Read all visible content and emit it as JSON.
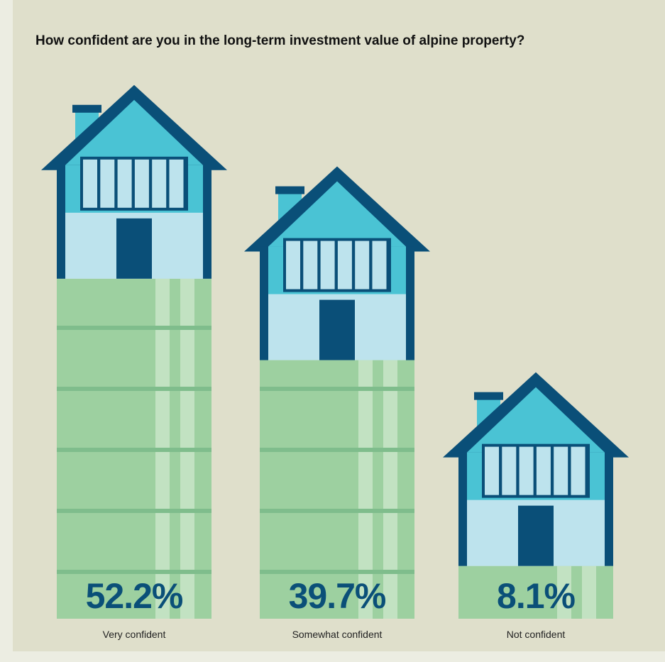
{
  "chart_data": {
    "type": "bar",
    "title": "How confident are you in the long-term investment value of alpine property?",
    "categories": [
      "Very confident",
      "Somewhat confident",
      "Not confident"
    ],
    "values": [
      52.2,
      39.7,
      8.1
    ],
    "value_labels": [
      "52.2%",
      "39.7%",
      "8.1%"
    ],
    "color": "#9dd0a0"
  }
}
